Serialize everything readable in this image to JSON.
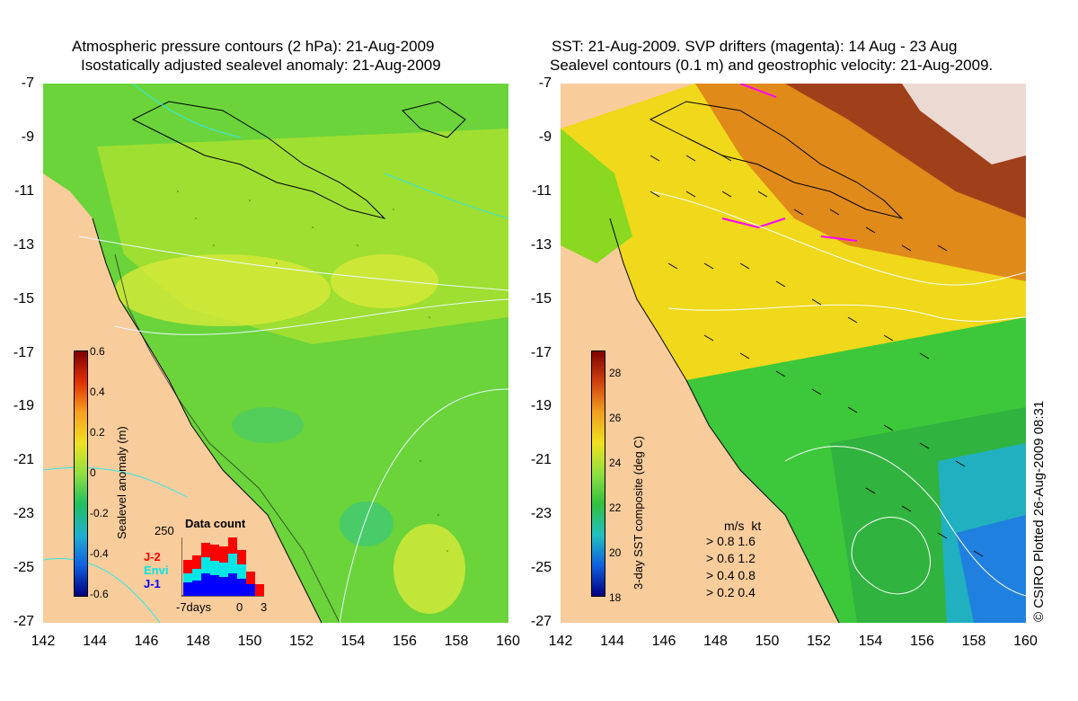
{
  "left_panel": {
    "title_line1": "Atmospheric pressure contours (2 hPa): 21-Aug-2009",
    "title_line2": "Isostatically adjusted sealevel anomaly: 21-Aug-2009",
    "colorbar": {
      "label": "Sealevel anomaly (m)",
      "ticks": [
        "0.6",
        "0.4",
        "0.2",
        "0",
        "-0.2",
        "-0.4",
        "-0.6"
      ]
    },
    "data_count": {
      "title": "Data count",
      "ymax_label": "250",
      "x_start": "-7days",
      "x_mid": "0",
      "x_end": "3",
      "legend": [
        {
          "label": "J-2",
          "color": "#ff0000"
        },
        {
          "label": "Envi",
          "color": "#00e5e5"
        },
        {
          "label": "J-1",
          "color": "#0000ff"
        }
      ]
    }
  },
  "right_panel": {
    "title_line1": "SST: 21-Aug-2009. SVP drifters (magenta): 14 Aug - 23 Aug",
    "title_line2": "Sealevel contours (0.1 m) and geostrophic velocity: 21-Aug-2009.",
    "colorbar": {
      "label": "3-day SST composite (deg C)",
      "ticks": [
        "28",
        "26",
        "24",
        "22",
        "20",
        "18"
      ]
    },
    "speed_legend": {
      "header_ms": "m/s",
      "header_kt": "kt",
      "rows": [
        {
          "ms": "0.8",
          "kt": "1.6"
        },
        {
          "ms": "0.6",
          "kt": "1.2"
        },
        {
          "ms": "0.4",
          "kt": "0.8"
        },
        {
          "ms": "0.2",
          "kt": "0.4"
        }
      ]
    }
  },
  "axes": {
    "y_ticks": [
      "-7",
      "-9",
      "-11",
      "-13",
      "-15",
      "-17",
      "-19",
      "-21",
      "-23",
      "-25",
      "-27"
    ],
    "x_ticks": [
      "142",
      "144",
      "146",
      "148",
      "150",
      "152",
      "154",
      "156",
      "158",
      "160"
    ]
  },
  "credit": "© CSIRO Plotted 26-Aug-2009 08:31",
  "colors": {
    "land": "#f9cc9c",
    "sla_green": "#6ad43a",
    "sst_yellow": "#f0d81a",
    "sst_orange": "#e08a1a",
    "sst_brown": "#a0401a"
  }
}
